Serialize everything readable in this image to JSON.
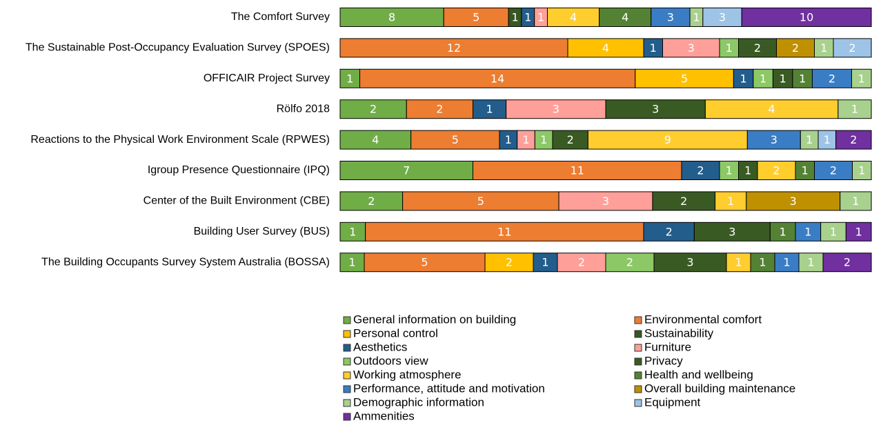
{
  "chart_data": {
    "type": "bar",
    "orientation": "horizontal",
    "stacked": "percent",
    "categories": [
      "The Comfort Survey",
      "The Sustainable Post-Occupancy Evaluation Survey (SPOES)",
      "OFFICAIR Project Survey",
      "Rölfo 2018",
      "Reactions to the Physical Work Environment Scale (RPWES)",
      "Igroup Presence Questionnaire (IPQ)",
      "Center of the Built Environment (CBE)",
      "Building User Survey (BUS)",
      "The Building Occupants Survey System Australia (BOSSA)"
    ],
    "series": [
      {
        "name": "General information on building",
        "color": "#70ad47",
        "values": [
          8,
          null,
          1,
          2,
          4,
          7,
          2,
          1,
          1
        ]
      },
      {
        "name": "Environmental comfort",
        "color": "#ed7d31",
        "values": [
          5,
          12,
          14,
          2,
          5,
          11,
          5,
          11,
          5
        ]
      },
      {
        "name": "Personal control",
        "color": "#ffc000",
        "values": [
          null,
          4,
          5,
          null,
          null,
          null,
          null,
          null,
          2
        ]
      },
      {
        "name": "Sustainability",
        "color": "#375623",
        "values": [
          1,
          null,
          null,
          null,
          null,
          null,
          null,
          null,
          null
        ]
      },
      {
        "name": "Aesthetics",
        "color": "#235d8c",
        "values": [
          1,
          1,
          1,
          1,
          1,
          2,
          null,
          2,
          1
        ]
      },
      {
        "name": "Furniture",
        "color": "#ff9f99",
        "values": [
          1,
          3,
          null,
          3,
          1,
          null,
          3,
          null,
          2
        ]
      },
      {
        "name": "Outdoors view",
        "color": "#8cc866",
        "values": [
          null,
          1,
          1,
          null,
          1,
          1,
          null,
          null,
          2
        ]
      },
      {
        "name": "Privacy",
        "color": "#3a5a24",
        "values": [
          null,
          2,
          1,
          3,
          2,
          1,
          2,
          3,
          3
        ]
      },
      {
        "name": "Working atmosphere",
        "color": "#ffcd2e",
        "values": [
          4,
          null,
          null,
          4,
          9,
          2,
          1,
          null,
          1
        ]
      },
      {
        "name": "Health and wellbeing",
        "color": "#548235",
        "values": [
          4,
          null,
          1,
          null,
          null,
          1,
          null,
          1,
          1
        ]
      },
      {
        "name": "Performance, attitude and motivation",
        "color": "#3a7dc4",
        "values": [
          3,
          null,
          2,
          null,
          3,
          2,
          null,
          1,
          1
        ]
      },
      {
        "name": "Overall building maintenance",
        "color": "#bf9000",
        "values": [
          null,
          2,
          null,
          null,
          null,
          null,
          3,
          null,
          null
        ]
      },
      {
        "name": "Demographic information",
        "color": "#a9d18e",
        "values": [
          1,
          1,
          1,
          1,
          1,
          1,
          1,
          1,
          1
        ]
      },
      {
        "name": "Equipment",
        "color": "#9dc3e6",
        "values": [
          3,
          2,
          null,
          null,
          1,
          null,
          null,
          null,
          null
        ]
      },
      {
        "name": "Ammenities",
        "color": "#7030a0",
        "values": [
          10,
          null,
          null,
          null,
          2,
          null,
          null,
          1,
          2
        ]
      }
    ]
  }
}
